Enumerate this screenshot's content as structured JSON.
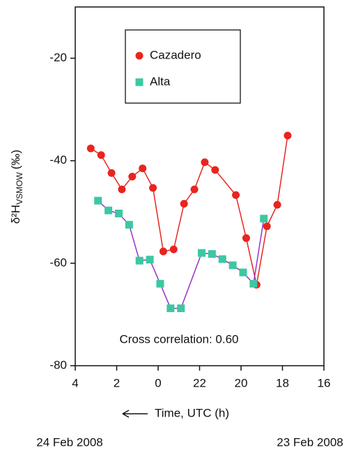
{
  "chart_data": {
    "type": "line",
    "y_label_main": "δ²H",
    "y_label_sub": "VSMOW",
    "y_label_unit": "(‰)",
    "x_label": "Time, UTC (h)",
    "date_left": "24 Feb 2008",
    "date_right": "23 Feb 2008",
    "annotation": "Cross correlation: 0.60",
    "xlim": [
      28,
      16
    ],
    "xticks": [
      {
        "value": 28,
        "label": "4"
      },
      {
        "value": 26,
        "label": "2"
      },
      {
        "value": 24,
        "label": "0"
      },
      22,
      20,
      18,
      16
    ],
    "ylim": [
      -80,
      -10
    ],
    "yticks": [
      -80,
      -60,
      -40,
      -20
    ],
    "series": [
      {
        "name": "Cazadero",
        "color": "#e8251f",
        "line_color": "#e8251f",
        "marker": "circle",
        "x": [
          27.25,
          26.75,
          26.25,
          25.75,
          25.25,
          24.75,
          24.25,
          23.75,
          23.25,
          22.75,
          22.25,
          21.75,
          21.25,
          20.25,
          19.75,
          19.25,
          18.75,
          18.25,
          17.75
        ],
        "values": [
          -37.6,
          -38.9,
          -42.4,
          -45.6,
          -43.1,
          -41.5,
          -45.3,
          -57.7,
          -57.3,
          -48.4,
          -45.6,
          -40.3,
          -41.8,
          -46.7,
          -55.1,
          -64.2,
          -52.8,
          -48.6,
          -35.1
        ]
      },
      {
        "name": "Alta",
        "color": "#3cc8a0",
        "line_color": "#9b30c8",
        "marker": "square",
        "x": [
          26.9,
          26.4,
          25.9,
          25.4,
          24.9,
          24.4,
          23.9,
          23.4,
          22.9,
          21.9,
          21.4,
          20.9,
          20.4,
          19.9,
          19.4,
          18.9
        ],
        "values": [
          -47.8,
          -49.7,
          -50.3,
          -52.5,
          -59.5,
          -59.3,
          -64.0,
          -68.8,
          -68.8,
          -58.0,
          -58.2,
          -59.2,
          -60.4,
          -61.8,
          -64.0,
          -51.3
        ]
      }
    ]
  }
}
